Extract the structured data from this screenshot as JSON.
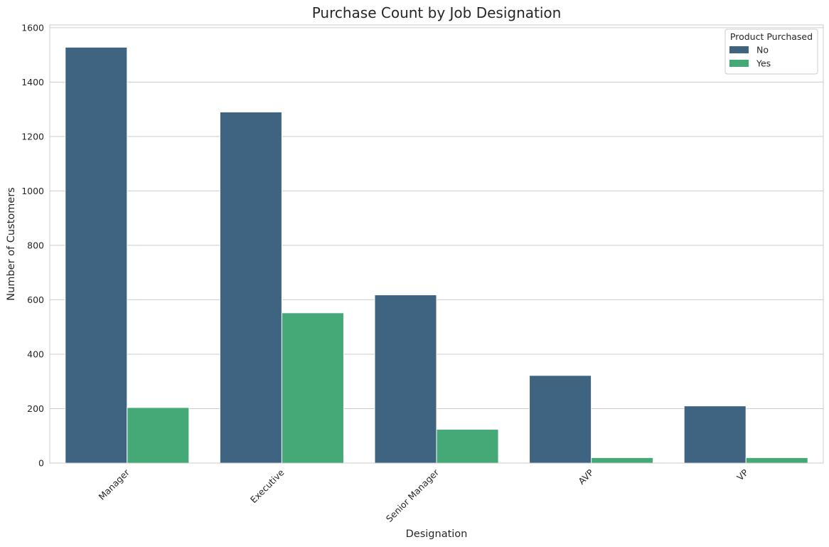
{
  "chart_data": {
    "type": "bar",
    "title": "Purchase Count by Job Designation",
    "xlabel": "Designation",
    "ylabel": "Number of Customers",
    "categories": [
      "Manager",
      "Executive",
      "Senior Manager",
      "AVP",
      "VP"
    ],
    "series": [
      {
        "name": "No",
        "values": [
          1528,
          1290,
          618,
          322,
          210
        ],
        "color": "#3e6482"
      },
      {
        "name": "Yes",
        "values": [
          204,
          552,
          124,
          20,
          20
        ],
        "color": "#44a877"
      }
    ],
    "ylim": [
      0,
      1610
    ],
    "yticks": [
      0,
      200,
      400,
      600,
      800,
      1000,
      1200,
      1400,
      1600
    ],
    "grid": true,
    "legend": {
      "title": "Product Purchased",
      "placement": "top-right"
    },
    "x_tick_rotation": -45
  }
}
